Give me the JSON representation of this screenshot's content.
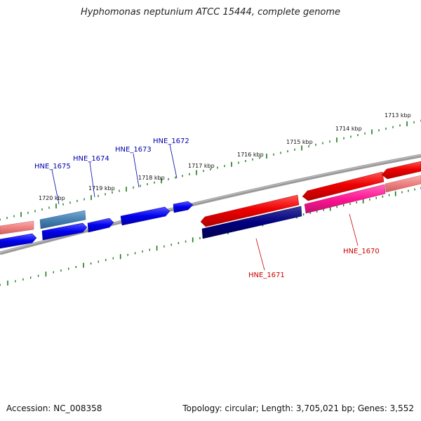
{
  "title": "Hyphomonas neptunium ATCC 15444, complete genome",
  "footer": {
    "accession": "Accession: NC_008358",
    "summary": "Topology: circular; Length: 3,705,021 bp; Genes: 3,552"
  },
  "colors": {
    "backbone": "#888888",
    "ticks": "#1a7a1a",
    "forward_gene": "#ee0000",
    "forward_gene_light": "#f08080",
    "forward_gene_pink": "#ff1493",
    "reverse_gene": "#0000ee",
    "reverse_gene_dark": "#000080",
    "reverse_gene_steel": "#4682b4",
    "label_forward": "#cc0000",
    "label_reverse": "#0000aa"
  },
  "kbp_labels": [
    {
      "text": "1713 kbp",
      "pos_kbp": 1713
    },
    {
      "text": "1714 kbp",
      "pos_kbp": 1714
    },
    {
      "text": "1715 kbp",
      "pos_kbp": 1715
    },
    {
      "text": "1716 kbp",
      "pos_kbp": 1716
    },
    {
      "text": "1717 kbp",
      "pos_kbp": 1717
    },
    {
      "text": "1718 kbp",
      "pos_kbp": 1718
    },
    {
      "text": "1719 kbp",
      "pos_kbp": 1719
    },
    {
      "text": "1720 kbp",
      "pos_kbp": 1720
    }
  ],
  "gene_labels": [
    {
      "text": "HNE_1675",
      "strand": "reverse"
    },
    {
      "text": "HNE_1674",
      "strand": "reverse"
    },
    {
      "text": "HNE_1673",
      "strand": "reverse"
    },
    {
      "text": "HNE_1672",
      "strand": "reverse"
    },
    {
      "text": "HNE_1671",
      "strand": "forward"
    },
    {
      "text": "HNE_1670",
      "strand": "forward"
    }
  ]
}
